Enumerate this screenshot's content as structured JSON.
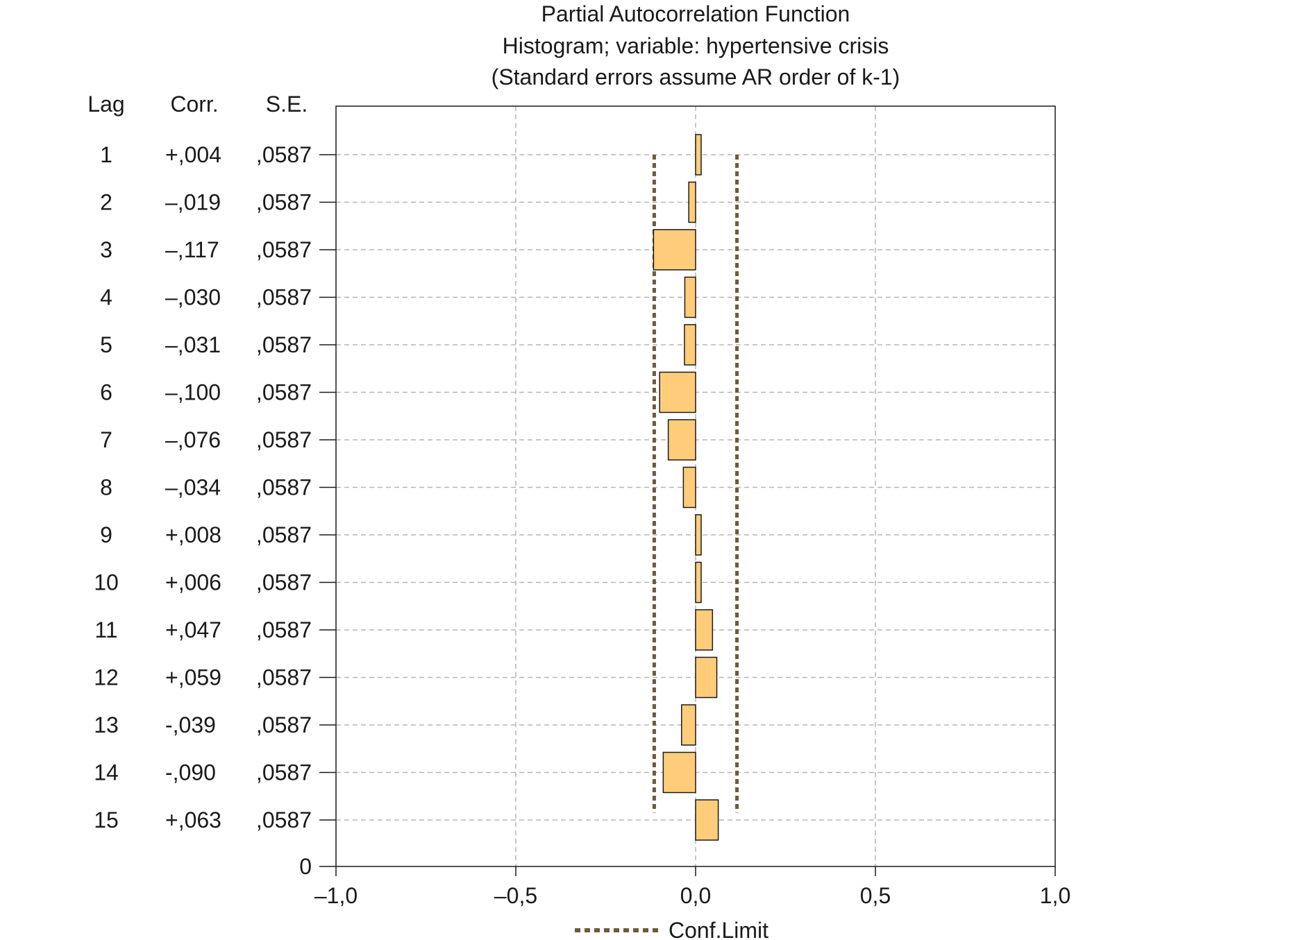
{
  "chart_data": {
    "type": "bar",
    "orientation": "horizontal",
    "title_lines": [
      "Partial Autocorrelation Function",
      "Histogram; variable: hypertensive crisis",
      "(Standard errors assume AR order of k-1)"
    ],
    "table_headers": {
      "lag": "Lag",
      "corr": "Corr.",
      "se": "S.E."
    },
    "rows": [
      {
        "lag": "1",
        "corr_label": "+,004",
        "se_label": ",0587",
        "value": 0.004
      },
      {
        "lag": "2",
        "corr_label": "–,019",
        "se_label": ",0587",
        "value": -0.019
      },
      {
        "lag": "3",
        "corr_label": "–,117",
        "se_label": ",0587",
        "value": -0.117
      },
      {
        "lag": "4",
        "corr_label": "–,030",
        "se_label": ",0587",
        "value": -0.03
      },
      {
        "lag": "5",
        "corr_label": "–,031",
        "se_label": ",0587",
        "value": -0.031
      },
      {
        "lag": "6",
        "corr_label": "–,100",
        "se_label": ",0587",
        "value": -0.1
      },
      {
        "lag": "7",
        "corr_label": "–,076",
        "se_label": ",0587",
        "value": -0.076
      },
      {
        "lag": "8",
        "corr_label": "–,034",
        "se_label": ",0587",
        "value": -0.034
      },
      {
        "lag": "9",
        "corr_label": "+,008",
        "se_label": ",0587",
        "value": 0.008
      },
      {
        "lag": "10",
        "corr_label": "+,006",
        "se_label": ",0587",
        "value": 0.006
      },
      {
        "lag": "11",
        "corr_label": "+,047",
        "se_label": ",0587",
        "value": 0.047
      },
      {
        "lag": "12",
        "corr_label": "+,059",
        "se_label": ",0587",
        "value": 0.059
      },
      {
        "lag": "13",
        "corr_label": "-,039",
        "se_label": ",0587",
        "value": -0.039
      },
      {
        "lag": "14",
        "corr_label": "-,090",
        "se_label": ",0587",
        "value": -0.09
      },
      {
        "lag": "15",
        "corr_label": "+,063",
        "se_label": ",0587",
        "value": 0.063
      }
    ],
    "zero_row_label": "0",
    "xlim": [
      -1.0,
      1.0
    ],
    "x_ticks": [
      {
        "value": -1.0,
        "label": "–1,0"
      },
      {
        "value": -0.5,
        "label": "–0,5"
      },
      {
        "value": 0.0,
        "label": "0,0"
      },
      {
        "value": 0.5,
        "label": "0,5"
      },
      {
        "value": 1.0,
        "label": "1,0"
      }
    ],
    "conf_limit": 0.115,
    "legend": {
      "label": "Conf.Limit",
      "placement": "bottom-center"
    },
    "grid": true,
    "colors": {
      "bar_fill": "#FFCD7A",
      "bar_stroke": "#1a1a1a",
      "conf_line": "#6E5A3A",
      "grid": "#b5b5b5",
      "axis": "#1a1a1a"
    }
  }
}
